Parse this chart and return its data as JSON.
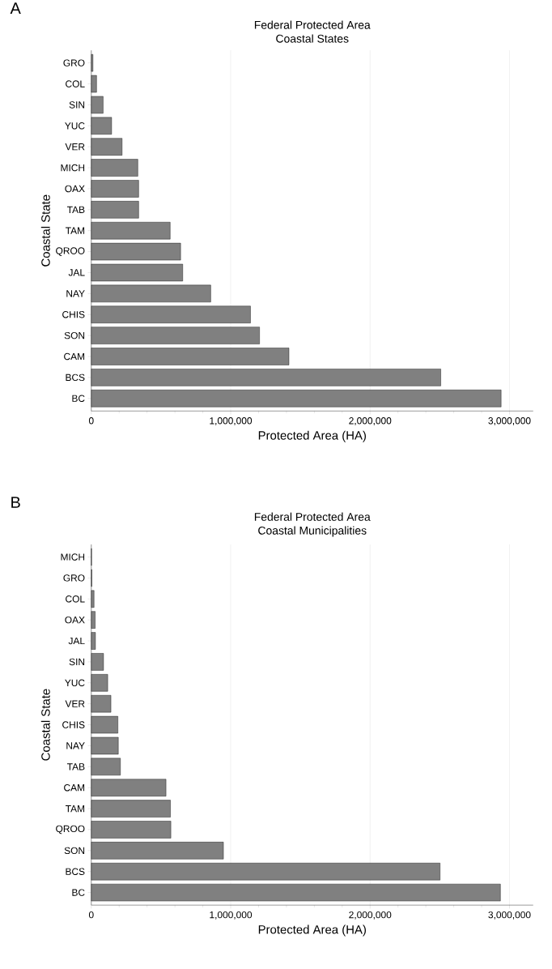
{
  "chart_data": [
    {
      "type": "bar",
      "orientation": "horizontal",
      "title": "Federal Protected Area",
      "subtitle": "Coastal States",
      "xlabel": "Protected Area (HA)",
      "ylabel": "Coastal State",
      "annotations": [
        "A"
      ],
      "categories": [
        "GRO",
        "COL",
        "SIN",
        "YUC",
        "VER",
        "MICH",
        "OAX",
        "TAB",
        "TAM",
        "QROO",
        "JAL",
        "NAY",
        "CHIS",
        "SON",
        "CAM",
        "BCS",
        "BC"
      ],
      "values": [
        12000,
        38000,
        85000,
        146000,
        221000,
        334000,
        340000,
        340000,
        566000,
        641000,
        656000,
        857000,
        1142000,
        1207000,
        1418000,
        2507000,
        2940000
      ],
      "color": "#808080",
      "xlim": [
        0,
        3170000
      ],
      "xticks": [
        {
          "value": 0,
          "label": "0"
        },
        {
          "value": 1000000,
          "label": "1,000,000"
        },
        {
          "value": 2000000,
          "label": "2,000,000"
        },
        {
          "value": 3000000,
          "label": "3,000,000"
        }
      ],
      "grid": "x"
    },
    {
      "type": "bar",
      "orientation": "horizontal",
      "title": "Federal Protected Area",
      "subtitle": "Coastal Municipalities",
      "xlabel": "Protected Area (HA)",
      "ylabel": "Coastal State",
      "annotations": [
        "B"
      ],
      "categories": [
        "MICH",
        "GRO",
        "COL",
        "OAX",
        "JAL",
        "SIN",
        "YUC",
        "VER",
        "CHIS",
        "NAY",
        "TAB",
        "CAM",
        "TAM",
        "QROO",
        "SON",
        "BCS",
        "BC"
      ],
      "values": [
        2000,
        4000,
        20000,
        28000,
        30000,
        88000,
        118000,
        141000,
        191000,
        194000,
        209000,
        536000,
        568000,
        571000,
        948000,
        2502000,
        2935000
      ],
      "color": "#808080",
      "xlim": [
        0,
        3170000
      ],
      "xticks": [
        {
          "value": 0,
          "label": "0"
        },
        {
          "value": 1000000,
          "label": "1,000,000"
        },
        {
          "value": 2000000,
          "label": "2,000,000"
        },
        {
          "value": 3000000,
          "label": "3,000,000"
        }
      ],
      "grid": "x"
    }
  ]
}
